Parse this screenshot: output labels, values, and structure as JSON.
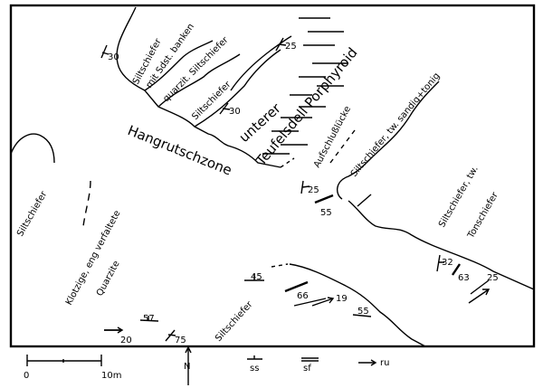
{
  "map": {
    "units": {
      "siltschiefer_sdst": [
        "Siltschiefer",
        "mit Sdst. banken"
      ],
      "quarzit_silt": "quarzit. Siltschiefer",
      "siltschiefer_mid": "Siltschiefer",
      "porphyroid": [
        "unterer",
        "Teufelsdell Porphyroid"
      ],
      "hangrutsch": "Hangrutschzone",
      "aufschluss": "Aufschlußlücke",
      "silt_sandig": "Siltschiefer, tw. sandig+tonig",
      "silt_ton": [
        "Siltschiefer, tw.",
        "Tonschiefer"
      ],
      "silt_left": "Siltschiefer",
      "quarzite": [
        "Klotzige, eng verfaltete",
        "Quarzite"
      ],
      "silt_bottom": "Siltschiefer"
    },
    "measurements": [
      "30",
      "25",
      "30",
      "25",
      "55",
      "45",
      "66",
      "19",
      "55",
      "32",
      "63",
      "25",
      "57",
      "20",
      "75"
    ]
  },
  "legend": {
    "scale_start": "0",
    "scale_end": "10m",
    "north": "N",
    "ss": "ss",
    "sf": "sf",
    "ru": "ru"
  }
}
